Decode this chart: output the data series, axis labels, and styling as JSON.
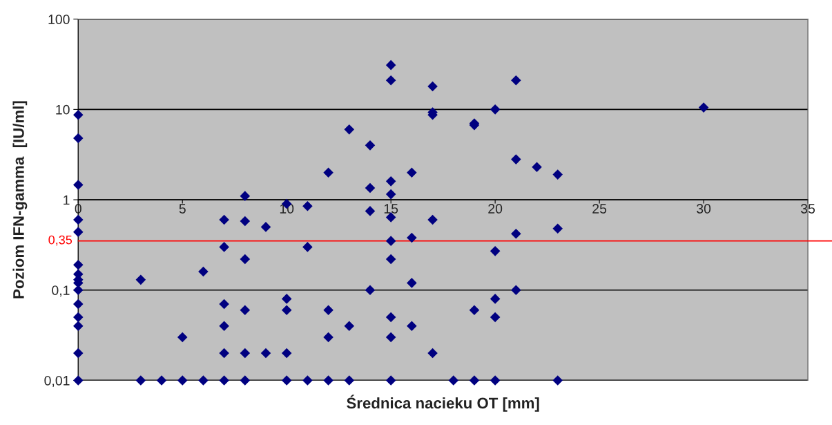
{
  "chart_data": {
    "type": "scatter",
    "xlabel": "Średnica nacieku OT [mm]",
    "ylabel": "Poziom IFN-gamma  [IU/ml]",
    "log": "y",
    "xlim": [
      0,
      35
    ],
    "xticks": [
      0,
      5,
      10,
      15,
      20,
      25,
      30,
      35
    ],
    "ylim": [
      0.01,
      100
    ],
    "yticks": [
      {
        "value": 100,
        "label": "100"
      },
      {
        "value": 10,
        "label": "10"
      },
      {
        "value": 1,
        "label": "1"
      },
      {
        "value": 0.1,
        "label": "0,1"
      },
      {
        "value": 0.01,
        "label": "0,01"
      }
    ],
    "grid": "y",
    "marker": "diamond",
    "legend": false,
    "ref_lines": [
      {
        "axis": "y",
        "value": 0.35,
        "label": "0,35",
        "color": "#ff0000"
      }
    ],
    "series": [
      {
        "color": "#000080",
        "x": [
          0,
          0,
          0,
          0,
          0,
          0,
          0,
          0,
          0,
          0,
          0,
          0,
          0,
          0,
          0,
          3,
          3,
          4,
          5,
          5,
          6,
          6,
          7,
          7,
          7,
          7,
          7,
          7,
          8,
          8,
          8,
          8,
          8,
          8,
          9,
          9,
          10,
          10,
          10,
          10,
          10,
          11,
          11,
          11,
          12,
          12,
          12,
          12,
          13,
          13,
          13,
          14,
          14,
          14,
          14,
          15,
          15,
          15,
          15,
          15,
          15,
          15,
          15,
          15,
          15,
          16,
          16,
          16,
          16,
          17,
          17,
          17,
          17,
          17,
          18,
          19,
          19,
          19,
          19,
          20,
          20,
          20,
          20,
          20,
          21,
          21,
          21,
          21,
          22,
          23,
          23,
          23,
          30
        ],
        "values": [
          8.7,
          4.8,
          1.46,
          0.6,
          0.44,
          0.19,
          0.15,
          0.13,
          0.12,
          0.1,
          0.07,
          0.05,
          0.04,
          0.02,
          0.01,
          0.13,
          0.01,
          0.01,
          0.03,
          0.01,
          0.16,
          0.01,
          0.6,
          0.3,
          0.07,
          0.04,
          0.02,
          0.01,
          1.1,
          0.58,
          0.22,
          0.06,
          0.02,
          0.01,
          0.5,
          0.02,
          0.9,
          0.08,
          0.06,
          0.02,
          0.01,
          0.85,
          0.3,
          0.01,
          2,
          0.06,
          0.03,
          0.01,
          6,
          0.04,
          0.01,
          4,
          1.35,
          0.75,
          0.1,
          31,
          21,
          1.6,
          1.15,
          0.64,
          0.35,
          0.22,
          0.05,
          0.03,
          0.01,
          2,
          0.38,
          0.12,
          0.04,
          18,
          9.3,
          8.7,
          0.6,
          0.02,
          0.01,
          7,
          6.7,
          0.06,
          0.01,
          10,
          0.27,
          0.08,
          0.05,
          0.01,
          21,
          2.8,
          0.42,
          0.1,
          2.3,
          1.9,
          0.48,
          0.01,
          10.5
        ]
      }
    ]
  }
}
